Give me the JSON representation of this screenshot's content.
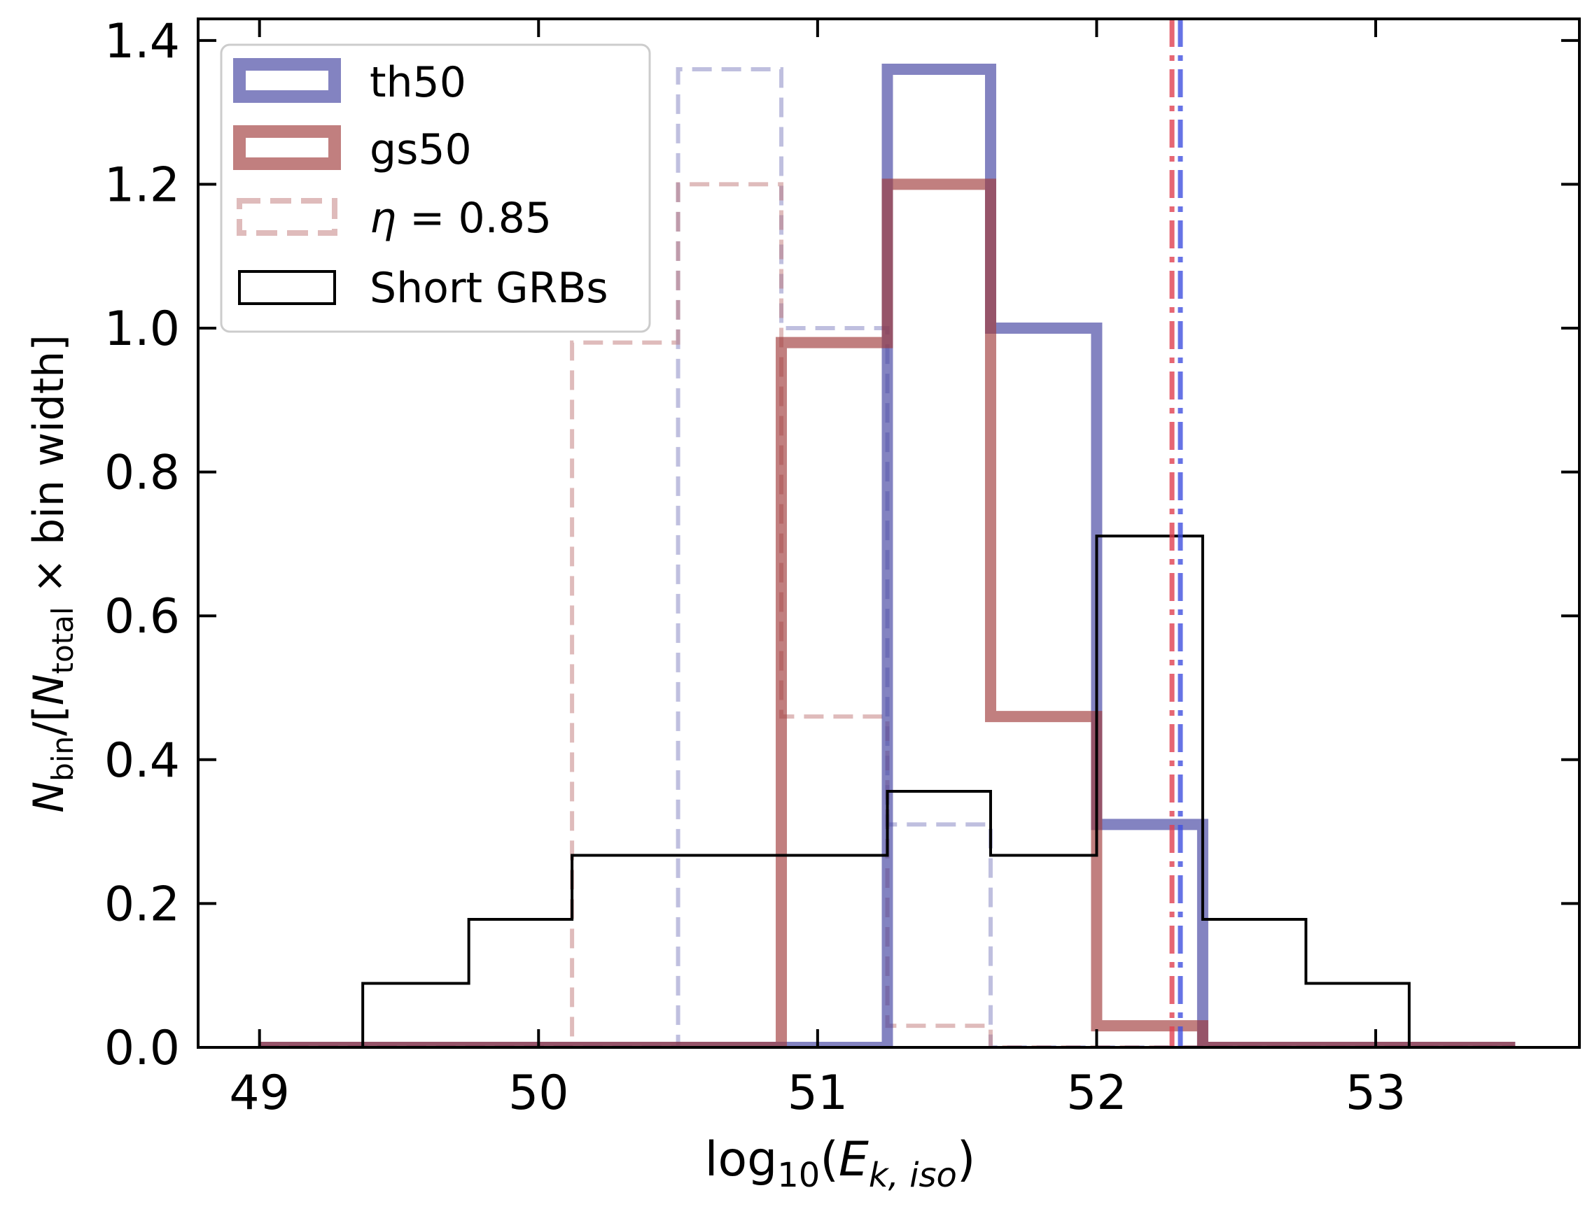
{
  "chart_data": {
    "type": "histogram",
    "xlabel": {
      "base": "log",
      "sub1": "10",
      "open": "(",
      "var": "E",
      "sub2": "k, iso",
      "close": ")"
    },
    "ylabel": {
      "n1": "N",
      "s1": "bin",
      "mid": "/[",
      "n2": "N",
      "s2": "total",
      "rest": " × bin width]"
    },
    "xlim": [
      48.78,
      53.73
    ],
    "ylim": [
      0,
      1.43
    ],
    "xticks": [
      49,
      50,
      51,
      52,
      53
    ],
    "xtick_labels": [
      "49",
      "50",
      "51",
      "52",
      "53"
    ],
    "yticks": [
      0.0,
      0.2,
      0.4,
      0.6,
      0.8,
      1.0,
      1.2,
      1.4
    ],
    "ytick_labels": [
      "0.0",
      "0.2",
      "0.4",
      "0.6",
      "0.8",
      "1.0",
      "1.2",
      "1.4"
    ],
    "legend_position": "top-left",
    "legend": [
      {
        "key": "th50",
        "label": "th50"
      },
      {
        "key": "gs50",
        "label": "gs50"
      },
      {
        "key": "eta",
        "label_var": "η",
        "label_rest": " = 0.85"
      },
      {
        "key": "short",
        "label": "Short GRBs"
      }
    ],
    "series": [
      {
        "name": "th50",
        "style": "thick-solid",
        "color": "#4040a0",
        "edges": [
          49.0,
          49.37,
          49.75,
          50.12,
          50.5,
          50.87,
          51.25,
          51.62,
          52.0,
          52.38,
          52.75,
          53.12,
          53.5
        ],
        "values": [
          0,
          0,
          0,
          0,
          0,
          0,
          1.36,
          1.0,
          0.31,
          0,
          0,
          0
        ]
      },
      {
        "name": "gs50",
        "style": "thick-solid",
        "color": "#a03a3a",
        "edges": [
          49.0,
          49.37,
          49.75,
          50.12,
          50.5,
          50.87,
          51.25,
          51.62,
          52.0,
          52.38,
          52.75,
          53.12,
          53.5
        ],
        "values": [
          0,
          0,
          0,
          0,
          0,
          0.98,
          1.2,
          0.46,
          0.03,
          0,
          0,
          0
        ]
      },
      {
        "name": "th50 η=0.85",
        "style": "dashed",
        "color": "#8080c0",
        "edges": [
          49.0,
          49.37,
          49.75,
          50.12,
          50.5,
          50.87,
          51.25,
          51.62,
          52.0,
          52.38,
          52.75,
          53.12,
          53.5
        ],
        "values": [
          0,
          0,
          0,
          0,
          1.36,
          1.0,
          0.31,
          0,
          0,
          0,
          0,
          0
        ]
      },
      {
        "name": "gs50 η=0.85",
        "style": "dashed",
        "color": "#c07878",
        "edges": [
          49.0,
          49.37,
          49.75,
          50.12,
          50.5,
          50.87,
          51.25,
          51.62,
          52.0,
          52.38,
          52.75,
          53.12,
          53.5
        ],
        "values": [
          0,
          0,
          0,
          0.98,
          1.2,
          0.46,
          0.03,
          0,
          0,
          0,
          0,
          0
        ]
      },
      {
        "name": "Short GRBs",
        "style": "thin-solid",
        "color": "#000000",
        "edges": [
          49.0,
          49.37,
          49.75,
          50.12,
          50.5,
          50.87,
          51.25,
          51.62,
          52.0,
          52.38,
          52.75,
          53.12,
          53.5
        ],
        "values": [
          0,
          0.089,
          0.178,
          0.267,
          0.267,
          0.267,
          0.356,
          0.267,
          0.711,
          0.178,
          0.089,
          0
        ]
      }
    ],
    "vlines": [
      {
        "name": "gs50 median",
        "x": 52.27,
        "color": "#e04050",
        "style": "dash-dot"
      },
      {
        "name": "th50 median",
        "x": 52.3,
        "color": "#4050e0",
        "style": "dash-dot"
      }
    ]
  }
}
